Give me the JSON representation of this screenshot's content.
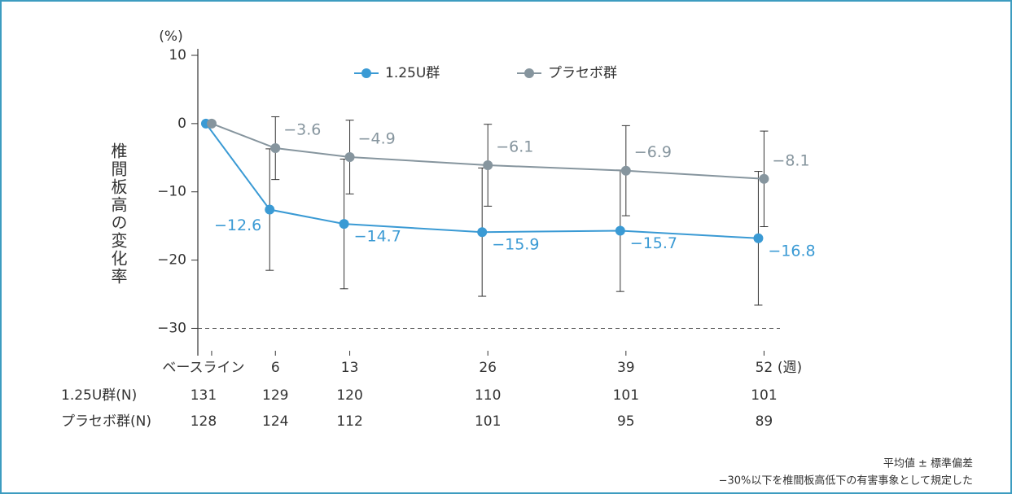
{
  "chart_data": {
    "type": "line",
    "y_label": "椎間板高の変化率",
    "y_unit": "(%)",
    "x_unit": "(週)",
    "x": [
      0,
      6,
      13,
      26,
      39,
      52
    ],
    "xticks": [
      {
        "value": 0,
        "label": "ベースライン"
      },
      6,
      13,
      26,
      39,
      52
    ],
    "xlim": [
      -1.3,
      53.5
    ],
    "ylim": [
      -34,
      10
    ],
    "yticks": [
      10,
      0,
      {
        "value": -10,
        "label": "−10"
      },
      {
        "value": -20,
        "label": "−20"
      },
      {
        "value": -30,
        "label": "−30"
      }
    ],
    "reference_line": -30,
    "legend": "top",
    "series": [
      {
        "name": "1.25U群",
        "color": "#3a9ad4",
        "values": [
          0,
          -12.6,
          -14.7,
          -15.9,
          -15.7,
          -16.8
        ],
        "value_labels": [
          null,
          "−12.6",
          "−14.7",
          "−15.9",
          "−15.7",
          "−16.8"
        ],
        "errors": [
          0,
          8.9,
          9.5,
          9.4,
          8.9,
          9.8
        ]
      },
      {
        "name": "プラセボ群",
        "color": "#86959e",
        "values": [
          0,
          -3.6,
          -4.9,
          -6.1,
          -6.9,
          -8.1
        ],
        "value_labels": [
          null,
          "−3.6",
          "−4.9",
          "−6.1",
          "−6.9",
          "−8.1"
        ],
        "errors": [
          0,
          4.6,
          5.4,
          6.0,
          6.6,
          7.0
        ]
      }
    ],
    "n_table": [
      {
        "label": "1.25U群(N)",
        "values": [
          "131",
          "129",
          "120",
          "110",
          "101",
          "101"
        ]
      },
      {
        "label": "プラセボ群(N)",
        "values": [
          "128",
          "124",
          "112",
          "101",
          "95",
          "89"
        ]
      }
    ],
    "footnotes": [
      "平均値 ± 標準偏差",
      "−30%以下を椎間板高低下の有害事象として規定した"
    ]
  }
}
